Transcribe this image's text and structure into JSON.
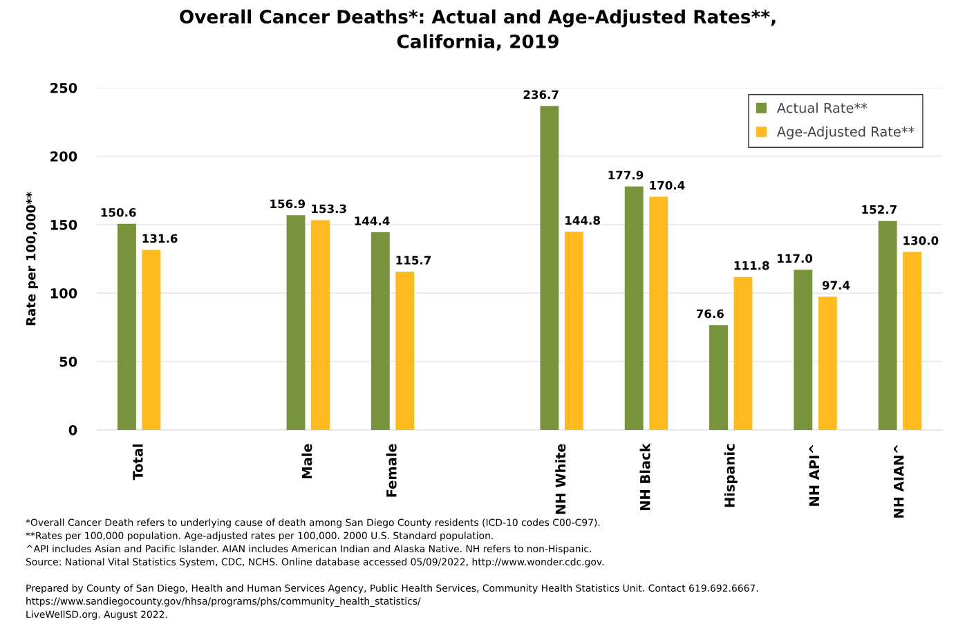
{
  "chart_data": {
    "type": "bar",
    "title": "Overall Cancer Deaths*: Actual and Age-Adjusted Rates**,\nCalifornia, 2019",
    "ylabel": "Rate per 100,000**",
    "categories": [
      "Total",
      null,
      "Male",
      "Female",
      null,
      "NH White",
      "NH Black",
      "Hispanic",
      "NH API^",
      "NH AIAN^"
    ],
    "series": [
      {
        "name": "Actual Rate**",
        "color": "#77933c",
        "values": [
          150.6,
          null,
          156.9,
          144.4,
          null,
          236.7,
          177.9,
          76.6,
          117.0,
          152.7
        ],
        "value_labels": [
          "150.6",
          null,
          "156.9",
          "144.4",
          null,
          "236.7",
          "177.9",
          "76.6",
          "117.0",
          "152.7"
        ]
      },
      {
        "name": "Age-Adjusted Rate**",
        "color": "#ffba1f",
        "values": [
          131.6,
          null,
          153.3,
          115.7,
          null,
          144.8,
          170.4,
          111.8,
          97.4,
          130.0
        ],
        "value_labels": [
          "131.6",
          null,
          "153.3",
          "115.7",
          null,
          "144.8",
          "170.4",
          "111.8",
          "97.4",
          "130.0"
        ]
      }
    ],
    "ylim": [
      0,
      250
    ],
    "yticks": [
      0,
      50,
      100,
      150,
      200,
      250
    ],
    "grid": "y",
    "legend": "top right",
    "annotations": [
      "*Overall Cancer Death refers to underlying cause of death among San Diego County residents (ICD-10 codes C00-C97).",
      "**Rates per 100,000 population. Age-adjusted rates per 100,000. 2000 U.S. Standard population.",
      "^API includes Asian and Pacific Islander. AIAN includes American Indian and Alaska Native. NH refers to non-Hispanic.",
      "Source: National Vital Statistics System, CDC, NCHS. Online database accessed 05/09/2022, http://www.wonder.cdc.gov.",
      "Prepared by County of San Diego, Health and Human Services Agency, Public Health Services, Community Health Statistics Unit. Contact 619.692.6667.",
      "https://www.sandiegocounty.gov/hhsa/programs/phs/community_health_statistics/",
      "LiveWellSD.org. August 2022."
    ]
  }
}
